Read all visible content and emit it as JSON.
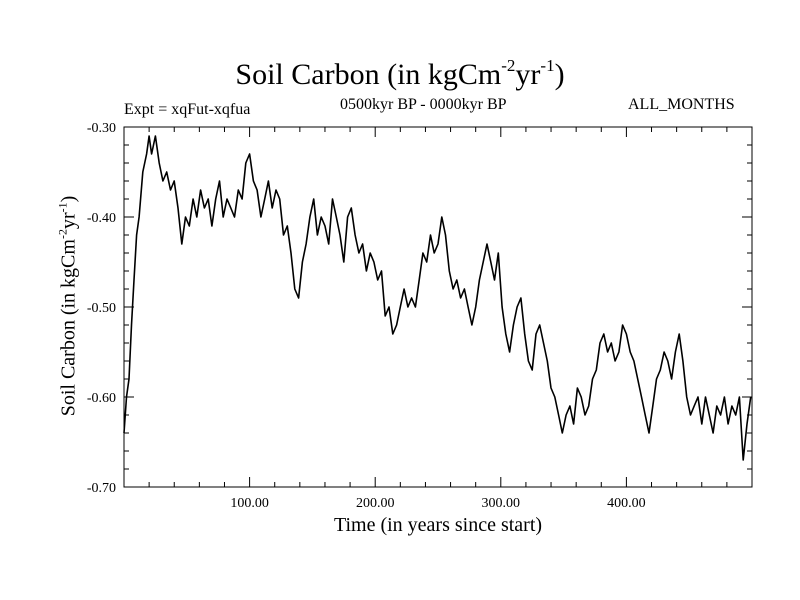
{
  "title": {
    "main": "Soil Carbon (in kgCm",
    "exp1": "-2",
    "mid": "yr",
    "exp2": "-1",
    "close": ")"
  },
  "header": {
    "expt": "Expt = xqFut-xqfua",
    "period": "0500kyr BP - 0000kyr BP",
    "months": "ALL_MONTHS"
  },
  "chart_data": {
    "type": "line",
    "title": "Soil Carbon (in kgCm-2yr-1)",
    "xlabel": "Time (in years since start)",
    "ylabel": "Soil Carbon (in kgCm-2yr-1)",
    "xlim": [
      0,
      500
    ],
    "ylim": [
      -0.7,
      -0.3
    ],
    "x_ticks": [
      100,
      200,
      300,
      400
    ],
    "x_tick_labels": [
      "100.00",
      "200.00",
      "300.00",
      "400.00"
    ],
    "y_ticks": [
      -0.3,
      -0.4,
      -0.5,
      -0.6,
      -0.7
    ],
    "y_tick_labels": [
      "-0.30",
      "-0.40",
      "-0.50",
      "-0.60",
      "-0.70"
    ],
    "grid": false,
    "series": [
      {
        "name": "Soil Carbon",
        "x": [
          0,
          2,
          4,
          6,
          8,
          10,
          12,
          15,
          18,
          20,
          22,
          25,
          28,
          31,
          34,
          37,
          40,
          43,
          46,
          49,
          52,
          55,
          58,
          61,
          64,
          67,
          70,
          73,
          76,
          79,
          82,
          85,
          88,
          91,
          94,
          97,
          100,
          103,
          106,
          109,
          112,
          115,
          118,
          121,
          124,
          127,
          130,
          133,
          136,
          139,
          142,
          145,
          148,
          151,
          154,
          157,
          160,
          163,
          166,
          169,
          172,
          175,
          178,
          181,
          184,
          187,
          190,
          193,
          196,
          199,
          202,
          205,
          208,
          211,
          214,
          217,
          220,
          223,
          226,
          229,
          232,
          235,
          238,
          241,
          244,
          247,
          250,
          253,
          256,
          259,
          262,
          265,
          268,
          271,
          274,
          277,
          280,
          283,
          286,
          289,
          292,
          295,
          298,
          301,
          304,
          307,
          310,
          313,
          316,
          319,
          322,
          325,
          328,
          331,
          334,
          337,
          340,
          343,
          346,
          349,
          352,
          355,
          358,
          361,
          364,
          367,
          370,
          373,
          376,
          379,
          382,
          385,
          388,
          391,
          394,
          397,
          400,
          403,
          406,
          409,
          412,
          415,
          418,
          421,
          424,
          427,
          430,
          433,
          436,
          439,
          442,
          445,
          448,
          451,
          454,
          457,
          460,
          463,
          466,
          469,
          472,
          475,
          478,
          481,
          484,
          487,
          490,
          493,
          496,
          499
        ],
        "values": [
          -0.64,
          -0.6,
          -0.58,
          -0.52,
          -0.47,
          -0.42,
          -0.4,
          -0.35,
          -0.33,
          -0.31,
          -0.33,
          -0.31,
          -0.34,
          -0.36,
          -0.35,
          -0.37,
          -0.36,
          -0.39,
          -0.43,
          -0.4,
          -0.41,
          -0.38,
          -0.4,
          -0.37,
          -0.39,
          -0.38,
          -0.41,
          -0.38,
          -0.36,
          -0.4,
          -0.38,
          -0.39,
          -0.4,
          -0.37,
          -0.38,
          -0.34,
          -0.33,
          -0.36,
          -0.37,
          -0.4,
          -0.38,
          -0.36,
          -0.39,
          -0.37,
          -0.38,
          -0.42,
          -0.41,
          -0.44,
          -0.48,
          -0.49,
          -0.45,
          -0.43,
          -0.4,
          -0.38,
          -0.42,
          -0.4,
          -0.41,
          -0.43,
          -0.38,
          -0.4,
          -0.42,
          -0.45,
          -0.4,
          -0.39,
          -0.42,
          -0.44,
          -0.43,
          -0.46,
          -0.44,
          -0.45,
          -0.47,
          -0.46,
          -0.51,
          -0.5,
          -0.53,
          -0.52,
          -0.5,
          -0.48,
          -0.5,
          -0.49,
          -0.5,
          -0.47,
          -0.44,
          -0.45,
          -0.42,
          -0.44,
          -0.43,
          -0.4,
          -0.42,
          -0.46,
          -0.48,
          -0.47,
          -0.49,
          -0.48,
          -0.5,
          -0.52,
          -0.5,
          -0.47,
          -0.45,
          -0.43,
          -0.45,
          -0.47,
          -0.44,
          -0.5,
          -0.53,
          -0.55,
          -0.52,
          -0.5,
          -0.49,
          -0.53,
          -0.56,
          -0.57,
          -0.53,
          -0.52,
          -0.54,
          -0.56,
          -0.59,
          -0.6,
          -0.62,
          -0.64,
          -0.62,
          -0.61,
          -0.63,
          -0.59,
          -0.6,
          -0.62,
          -0.61,
          -0.58,
          -0.57,
          -0.54,
          -0.53,
          -0.55,
          -0.54,
          -0.56,
          -0.55,
          -0.52,
          -0.53,
          -0.55,
          -0.56,
          -0.58,
          -0.6,
          -0.62,
          -0.64,
          -0.61,
          -0.58,
          -0.57,
          -0.55,
          -0.56,
          -0.58,
          -0.55,
          -0.53,
          -0.56,
          -0.6,
          -0.62,
          -0.61,
          -0.6,
          -0.63,
          -0.6,
          -0.62,
          -0.64,
          -0.61,
          -0.62,
          -0.6,
          -0.63,
          -0.61,
          -0.62,
          -0.6,
          -0.67,
          -0.63,
          -0.6
        ]
      }
    ]
  }
}
